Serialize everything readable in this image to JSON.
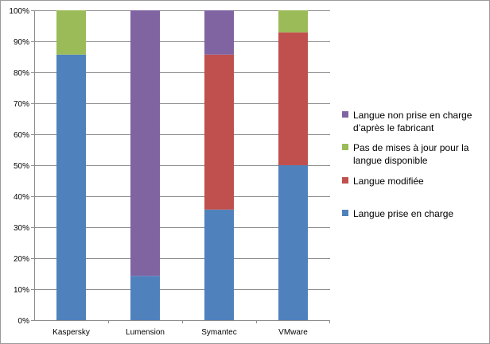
{
  "chart_data": {
    "type": "bar",
    "stacked": true,
    "categories": [
      "Kaspersky",
      "Lumension",
      "Symantec",
      "VMware"
    ],
    "series": [
      {
        "name": "Langue prise en charge",
        "color": "#4f81bd",
        "values": [
          85.7,
          14.3,
          35.7,
          50.0
        ]
      },
      {
        "name": "Langue modifiée",
        "color": "#c0504d",
        "values": [
          0,
          0,
          50.0,
          42.9
        ]
      },
      {
        "name": "Pas de mises à jour pour la langue disponible",
        "color": "#9bbb59",
        "values": [
          14.3,
          0,
          0,
          7.1
        ]
      },
      {
        "name": "Langue non prise en charge d’après le fabricant",
        "color": "#8064a2",
        "values": [
          0,
          85.7,
          14.3,
          0
        ]
      }
    ],
    "yticks": [
      "0%",
      "10%",
      "20%",
      "30%",
      "40%",
      "50%",
      "60%",
      "70%",
      "80%",
      "90%",
      "100%"
    ],
    "ylim": [
      0,
      100
    ],
    "grid": true,
    "legend_position": "right",
    "legend": [
      {
        "lines": [
          "Langue non prise en charge",
          "d’après le fabricant"
        ],
        "color": "#8064a2"
      },
      {
        "lines": [
          "Pas de mises à jour pour la",
          "langue disponible"
        ],
        "color": "#9bbb59"
      },
      {
        "lines": [
          "Langue modifiée"
        ],
        "color": "#c0504d"
      },
      {
        "lines": [
          "Langue prise en charge"
        ],
        "color": "#4f81bd"
      }
    ]
  }
}
